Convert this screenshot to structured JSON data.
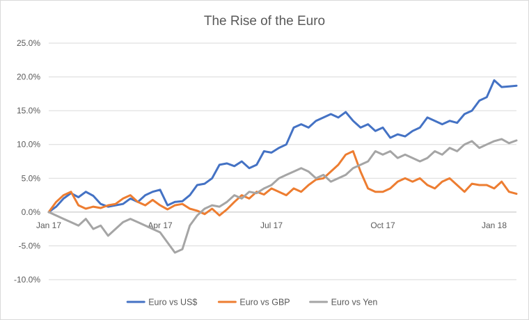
{
  "chart_data": {
    "type": "line",
    "title": "The Rise of the Euro",
    "xlabel": "",
    "ylabel": "",
    "xlim": [
      0,
      12.6
    ],
    "ylim": [
      -10,
      25
    ],
    "y_ticks": [
      25,
      20,
      15,
      10,
      5,
      0,
      -5,
      -10
    ],
    "y_tick_labels": [
      "25.0%",
      "20.0%",
      "15.0%",
      "10.0%",
      "5.0%",
      "0.0%",
      "-5.0%",
      "-10.0%"
    ],
    "x_ticks": [
      0,
      3,
      6,
      9,
      12
    ],
    "x_tick_labels": [
      "Jan 17",
      "Apr 17",
      "Jul 17",
      "Oct 17",
      "Jan 18"
    ],
    "grid": true,
    "legend_position": "bottom",
    "series": [
      {
        "name": "Euro vs US$",
        "color": "#4472c4",
        "x": [
          0,
          0.2,
          0.4,
          0.6,
          0.8,
          1.0,
          1.2,
          1.4,
          1.6,
          1.8,
          2.0,
          2.2,
          2.4,
          2.6,
          2.8,
          3.0,
          3.2,
          3.4,
          3.6,
          3.8,
          4.0,
          4.2,
          4.4,
          4.6,
          4.8,
          5.0,
          5.2,
          5.4,
          5.6,
          5.8,
          6.0,
          6.2,
          6.4,
          6.6,
          6.8,
          7.0,
          7.2,
          7.4,
          7.6,
          7.8,
          8.0,
          8.2,
          8.4,
          8.6,
          8.8,
          9.0,
          9.2,
          9.4,
          9.6,
          9.8,
          10.0,
          10.2,
          10.4,
          10.6,
          10.8,
          11.0,
          11.2,
          11.4,
          11.6,
          11.8,
          12.0,
          12.2,
          12.4,
          12.6
        ],
        "y": [
          0.0,
          0.8,
          2.0,
          2.8,
          2.2,
          3.0,
          2.4,
          1.2,
          0.8,
          1.0,
          1.2,
          2.0,
          1.5,
          2.5,
          3.0,
          3.3,
          1.0,
          1.5,
          1.6,
          2.5,
          4.0,
          4.2,
          5.0,
          7.0,
          7.2,
          6.8,
          7.5,
          6.5,
          7.0,
          9.0,
          8.8,
          9.5,
          10.0,
          12.5,
          13.0,
          12.5,
          13.5,
          14.0,
          14.5,
          14.0,
          14.8,
          13.5,
          12.5,
          13.0,
          12.0,
          12.5,
          11.0,
          11.5,
          11.2,
          12.0,
          12.5,
          14.0,
          13.5,
          13.0,
          13.5,
          13.2,
          14.5,
          15.0,
          16.5,
          17.0,
          19.5,
          18.5,
          18.6,
          18.7
        ]
      },
      {
        "name": "Euro vs GBP",
        "color": "#ed7d31",
        "x": [
          0,
          0.2,
          0.4,
          0.6,
          0.8,
          1.0,
          1.2,
          1.4,
          1.6,
          1.8,
          2.0,
          2.2,
          2.4,
          2.6,
          2.8,
          3.0,
          3.2,
          3.4,
          3.6,
          3.8,
          4.0,
          4.2,
          4.4,
          4.6,
          4.8,
          5.0,
          5.2,
          5.4,
          5.6,
          5.8,
          6.0,
          6.2,
          6.4,
          6.6,
          6.8,
          7.0,
          7.2,
          7.4,
          7.6,
          7.8,
          8.0,
          8.2,
          8.4,
          8.6,
          8.8,
          9.0,
          9.2,
          9.4,
          9.6,
          9.8,
          10.0,
          10.2,
          10.4,
          10.6,
          10.8,
          11.0,
          11.2,
          11.4,
          11.6,
          11.8,
          12.0,
          12.2,
          12.4,
          12.6
        ],
        "y": [
          0.0,
          1.5,
          2.5,
          3.0,
          1.0,
          0.5,
          0.8,
          0.6,
          1.0,
          1.2,
          2.0,
          2.5,
          1.5,
          1.0,
          1.8,
          1.0,
          0.4,
          1.0,
          1.2,
          0.5,
          0.2,
          -0.3,
          0.5,
          -0.5,
          0.4,
          1.5,
          2.5,
          2.0,
          3.0,
          2.6,
          3.5,
          3.0,
          2.5,
          3.5,
          3.0,
          4.0,
          4.8,
          5.0,
          6.0,
          7.0,
          8.5,
          9.0,
          6.0,
          3.5,
          3.0,
          3.0,
          3.5,
          4.5,
          5.0,
          4.5,
          5.0,
          4.0,
          3.5,
          4.5,
          5.0,
          4.0,
          3.0,
          4.2,
          4.0,
          4.0,
          3.5,
          4.5,
          3.0,
          2.7
        ]
      },
      {
        "name": "Euro vs Yen",
        "color": "#a5a5a5",
        "x": [
          0,
          0.2,
          0.4,
          0.6,
          0.8,
          1.0,
          1.2,
          1.4,
          1.6,
          1.8,
          2.0,
          2.2,
          2.4,
          2.6,
          2.8,
          3.0,
          3.2,
          3.4,
          3.6,
          3.8,
          4.0,
          4.2,
          4.4,
          4.6,
          4.8,
          5.0,
          5.2,
          5.4,
          5.6,
          5.8,
          6.0,
          6.2,
          6.4,
          6.6,
          6.8,
          7.0,
          7.2,
          7.4,
          7.6,
          7.8,
          8.0,
          8.2,
          8.4,
          8.6,
          8.8,
          9.0,
          9.2,
          9.4,
          9.6,
          9.8,
          10.0,
          10.2,
          10.4,
          10.6,
          10.8,
          11.0,
          11.2,
          11.4,
          11.6,
          11.8,
          12.0,
          12.2,
          12.4,
          12.6
        ],
        "y": [
          0.0,
          -0.5,
          -1.0,
          -1.5,
          -2.0,
          -1.0,
          -2.5,
          -2.0,
          -3.5,
          -2.5,
          -1.5,
          -1.0,
          -1.5,
          -2.0,
          -2.5,
          -3.0,
          -4.5,
          -6.0,
          -5.5,
          -2.0,
          -0.5,
          0.5,
          1.0,
          0.8,
          1.5,
          2.5,
          2.0,
          3.0,
          2.8,
          3.5,
          4.0,
          5.0,
          5.5,
          6.0,
          6.5,
          6.0,
          5.0,
          5.5,
          4.5,
          5.0,
          5.5,
          6.5,
          7.0,
          7.5,
          9.0,
          8.5,
          9.0,
          8.0,
          8.5,
          8.0,
          7.5,
          8.0,
          9.0,
          8.5,
          9.5,
          9.0,
          10.0,
          10.5,
          9.5,
          10.0,
          10.5,
          10.8,
          10.2,
          10.6
        ]
      }
    ]
  }
}
